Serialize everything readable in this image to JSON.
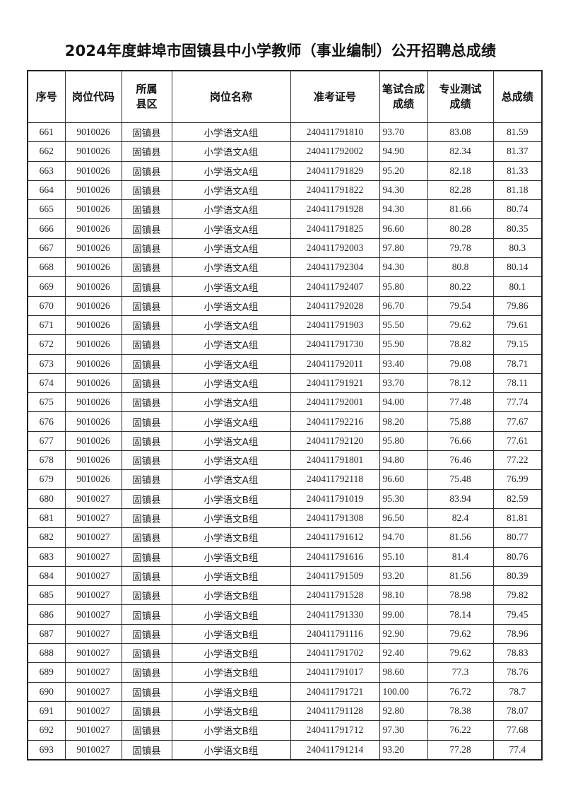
{
  "title": "2024年度蚌埠市固镇县中小学教师（事业编制）公开招聘总成绩",
  "columns": [
    "序号",
    "岗位代码",
    "所属县区",
    "岗位名称",
    "准考证号",
    "笔试合成成绩",
    "专业测试成绩",
    "总成绩"
  ],
  "rows": [
    [
      "661",
      "9010026",
      "固镇县",
      "小学语文A组",
      "240411791810",
      "93.70",
      "83.08",
      "81.59"
    ],
    [
      "662",
      "9010026",
      "固镇县",
      "小学语文A组",
      "240411792002",
      "94.90",
      "82.34",
      "81.37"
    ],
    [
      "663",
      "9010026",
      "固镇县",
      "小学语文A组",
      "240411791829",
      "95.20",
      "82.18",
      "81.33"
    ],
    [
      "664",
      "9010026",
      "固镇县",
      "小学语文A组",
      "240411791822",
      "94.30",
      "82.28",
      "81.18"
    ],
    [
      "665",
      "9010026",
      "固镇县",
      "小学语文A组",
      "240411791928",
      "94.30",
      "81.66",
      "80.74"
    ],
    [
      "666",
      "9010026",
      "固镇县",
      "小学语文A组",
      "240411791825",
      "96.60",
      "80.28",
      "80.35"
    ],
    [
      "667",
      "9010026",
      "固镇县",
      "小学语文A组",
      "240411792003",
      "97.80",
      "79.78",
      "80.3"
    ],
    [
      "668",
      "9010026",
      "固镇县",
      "小学语文A组",
      "240411792304",
      "94.30",
      "80.8",
      "80.14"
    ],
    [
      "669",
      "9010026",
      "固镇县",
      "小学语文A组",
      "240411792407",
      "95.80",
      "80.22",
      "80.1"
    ],
    [
      "670",
      "9010026",
      "固镇县",
      "小学语文A组",
      "240411792028",
      "96.70",
      "79.54",
      "79.86"
    ],
    [
      "671",
      "9010026",
      "固镇县",
      "小学语文A组",
      "240411791903",
      "95.50",
      "79.62",
      "79.61"
    ],
    [
      "672",
      "9010026",
      "固镇县",
      "小学语文A组",
      "240411791730",
      "95.90",
      "78.82",
      "79.15"
    ],
    [
      "673",
      "9010026",
      "固镇县",
      "小学语文A组",
      "240411792011",
      "93.40",
      "79.08",
      "78.71"
    ],
    [
      "674",
      "9010026",
      "固镇县",
      "小学语文A组",
      "240411791921",
      "93.70",
      "78.12",
      "78.11"
    ],
    [
      "675",
      "9010026",
      "固镇县",
      "小学语文A组",
      "240411792001",
      "94.00",
      "77.48",
      "77.74"
    ],
    [
      "676",
      "9010026",
      "固镇县",
      "小学语文A组",
      "240411792216",
      "98.20",
      "75.88",
      "77.67"
    ],
    [
      "677",
      "9010026",
      "固镇县",
      "小学语文A组",
      "240411792120",
      "95.80",
      "76.66",
      "77.61"
    ],
    [
      "678",
      "9010026",
      "固镇县",
      "小学语文A组",
      "240411791801",
      "94.80",
      "76.46",
      "77.22"
    ],
    [
      "679",
      "9010026",
      "固镇县",
      "小学语文A组",
      "240411792118",
      "96.60",
      "75.48",
      "76.99"
    ],
    [
      "680",
      "9010027",
      "固镇县",
      "小学语文B组",
      "240411791019",
      "95.30",
      "83.94",
      "82.59"
    ],
    [
      "681",
      "9010027",
      "固镇县",
      "小学语文B组",
      "240411791308",
      "96.50",
      "82.4",
      "81.81"
    ],
    [
      "682",
      "9010027",
      "固镇县",
      "小学语文B组",
      "240411791612",
      "94.70",
      "81.56",
      "80.77"
    ],
    [
      "683",
      "9010027",
      "固镇县",
      "小学语文B组",
      "240411791616",
      "95.10",
      "81.4",
      "80.76"
    ],
    [
      "684",
      "9010027",
      "固镇县",
      "小学语文B组",
      "240411791509",
      "93.20",
      "81.56",
      "80.39"
    ],
    [
      "685",
      "9010027",
      "固镇县",
      "小学语文B组",
      "240411791528",
      "98.10",
      "78.98",
      "79.82"
    ],
    [
      "686",
      "9010027",
      "固镇县",
      "小学语文B组",
      "240411791330",
      "99.00",
      "78.14",
      "79.45"
    ],
    [
      "687",
      "9010027",
      "固镇县",
      "小学语文B组",
      "240411791116",
      "92.90",
      "79.62",
      "78.96"
    ],
    [
      "688",
      "9010027",
      "固镇县",
      "小学语文B组",
      "240411791702",
      "92.40",
      "79.62",
      "78.83"
    ],
    [
      "689",
      "9010027",
      "固镇县",
      "小学语文B组",
      "240411791017",
      "98.60",
      "77.3",
      "78.76"
    ],
    [
      "690",
      "9010027",
      "固镇县",
      "小学语文B组",
      "240411791721",
      "100.00",
      "76.72",
      "78.7"
    ],
    [
      "691",
      "9010027",
      "固镇县",
      "小学语文B组",
      "240411791128",
      "92.80",
      "78.38",
      "78.07"
    ],
    [
      "692",
      "9010027",
      "固镇县",
      "小学语文B组",
      "240411791712",
      "97.30",
      "76.22",
      "77.68"
    ],
    [
      "693",
      "9010027",
      "固镇县",
      "小学语文B组",
      "240411791214",
      "93.20",
      "77.28",
      "77.4"
    ]
  ]
}
